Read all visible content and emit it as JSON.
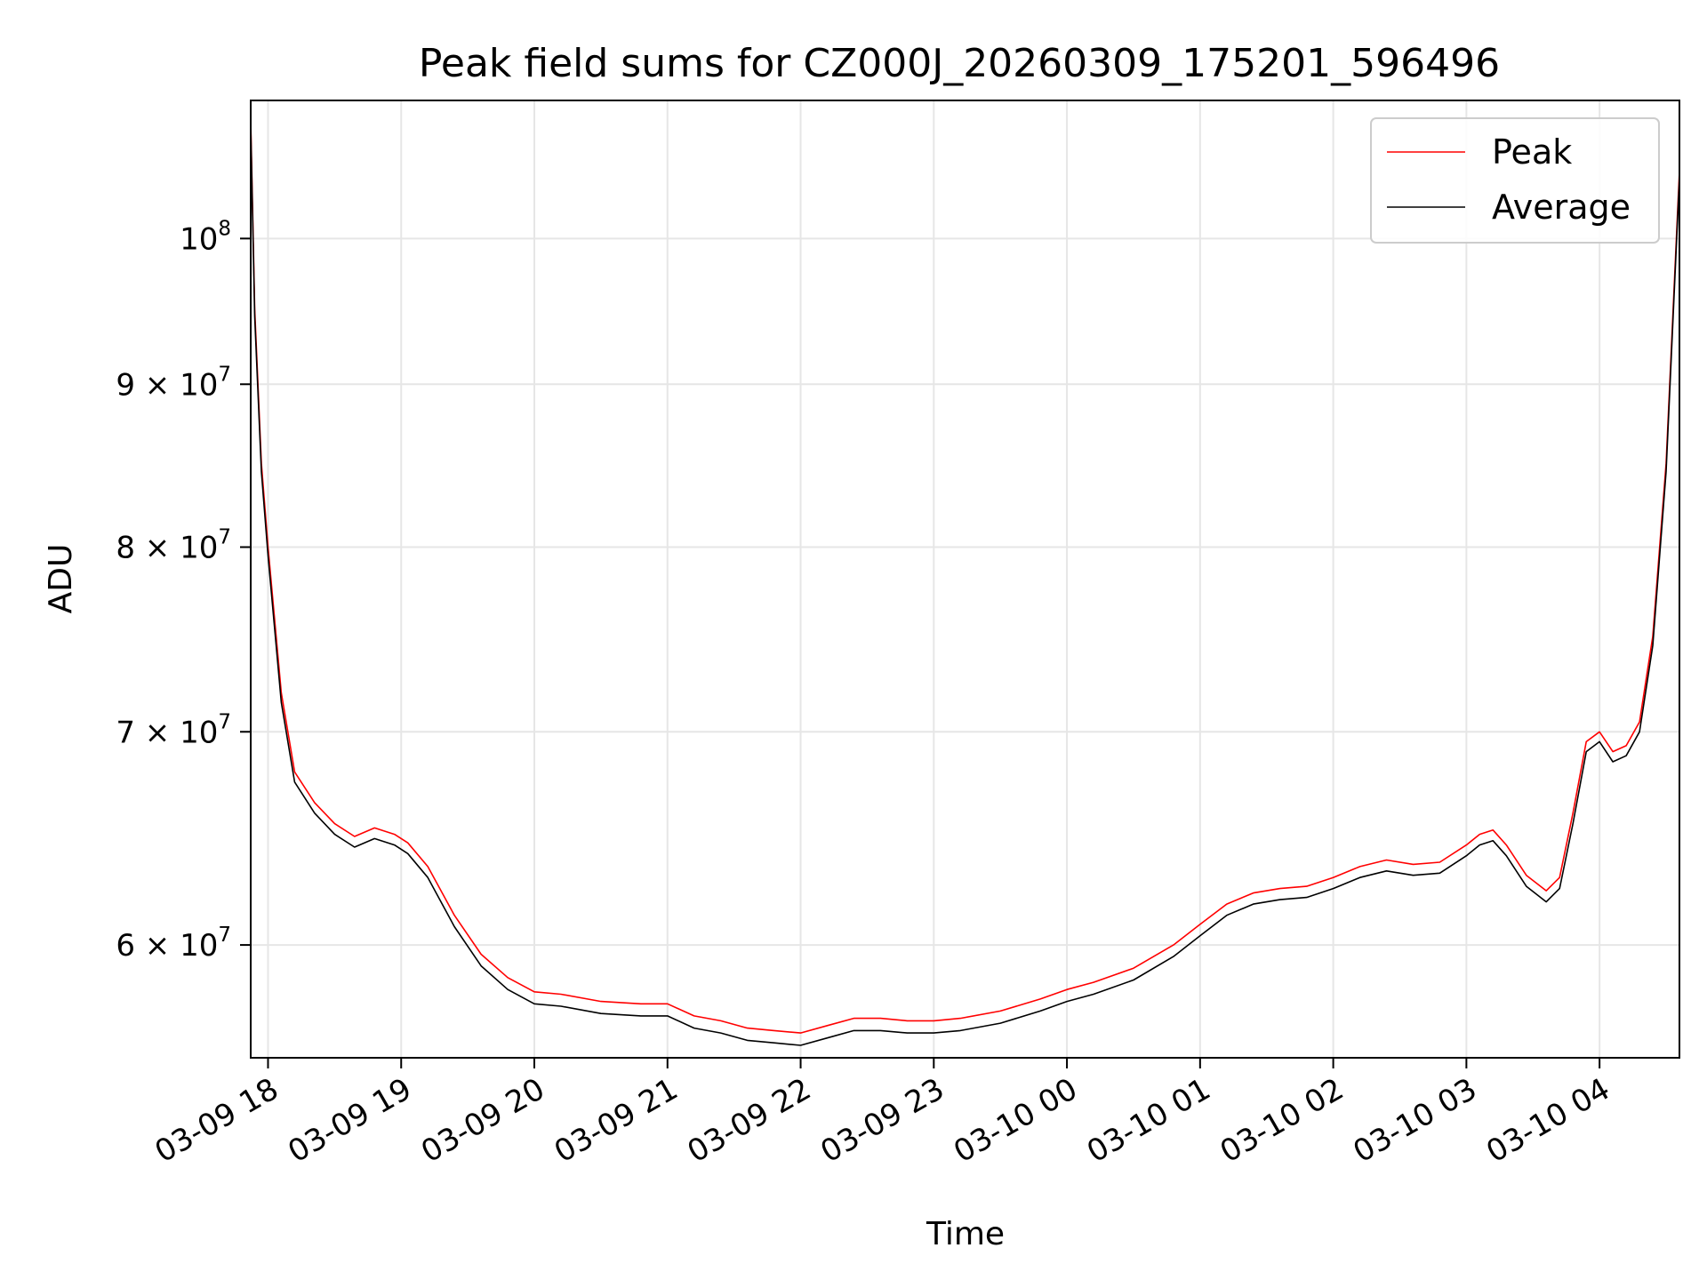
{
  "chart_data": {
    "type": "line",
    "title": "Peak field sums for CZ000J_20260309_175201_596496",
    "xlabel": "Time",
    "ylabel": "ADU",
    "yscale": "log",
    "xlim": [
      17.87,
      28.6
    ],
    "ylim": [
      55300000,
      110500000
    ],
    "grid": true,
    "legend_position": "top-right",
    "x_ticks": [
      {
        "value": 18,
        "label": "03-09 18"
      },
      {
        "value": 19,
        "label": "03-09 19"
      },
      {
        "value": 20,
        "label": "03-09 20"
      },
      {
        "value": 21,
        "label": "03-09 21"
      },
      {
        "value": 22,
        "label": "03-09 22"
      },
      {
        "value": 23,
        "label": "03-09 23"
      },
      {
        "value": 24,
        "label": "03-10 00"
      },
      {
        "value": 25,
        "label": "03-10 01"
      },
      {
        "value": 26,
        "label": "03-10 02"
      },
      {
        "value": 27,
        "label": "03-10 03"
      },
      {
        "value": 28,
        "label": "03-10 04"
      }
    ],
    "y_ticks": [
      {
        "value": 60000000,
        "base": "6 × 10",
        "exp": "7"
      },
      {
        "value": 70000000,
        "base": "7 × 10",
        "exp": "7"
      },
      {
        "value": 80000000,
        "base": "8 × 10",
        "exp": "7"
      },
      {
        "value": 90000000,
        "base": "9 × 10",
        "exp": "7"
      },
      {
        "value": 100000000,
        "base": "10",
        "exp": "8"
      }
    ],
    "series": [
      {
        "name": "Peak",
        "color": "#ff0000",
        "x": [
          17.87,
          17.9,
          17.95,
          18.0,
          18.1,
          18.2,
          18.35,
          18.5,
          18.65,
          18.8,
          18.95,
          19.05,
          19.2,
          19.4,
          19.6,
          19.8,
          20.0,
          20.2,
          20.5,
          20.8,
          21.0,
          21.2,
          21.4,
          21.6,
          21.8,
          22.0,
          22.2,
          22.4,
          22.6,
          22.8,
          23.0,
          23.2,
          23.5,
          23.8,
          24.0,
          24.2,
          24.5,
          24.8,
          25.0,
          25.2,
          25.4,
          25.6,
          25.8,
          26.0,
          26.2,
          26.4,
          26.6,
          26.8,
          27.0,
          27.1,
          27.2,
          27.3,
          27.45,
          27.6,
          27.7,
          27.8,
          27.9,
          28.0,
          28.1,
          28.2,
          28.3,
          28.4,
          28.5,
          28.6
        ],
        "y": [
          109000000,
          95000000,
          85000000,
          80000000,
          72000000,
          68000000,
          66500000,
          65500000,
          64900000,
          65300000,
          65000000,
          64600000,
          63500000,
          61300000,
          59600000,
          58600000,
          58000000,
          57900000,
          57600000,
          57500000,
          57500000,
          57000000,
          56800000,
          56500000,
          56400000,
          56300000,
          56600000,
          56900000,
          56900000,
          56800000,
          56800000,
          56900000,
          57200000,
          57700000,
          58100000,
          58400000,
          59000000,
          60000000,
          60900000,
          61800000,
          62300000,
          62500000,
          62600000,
          63000000,
          63500000,
          63800000,
          63600000,
          63700000,
          64500000,
          65000000,
          65200000,
          64500000,
          63100000,
          62400000,
          63000000,
          66000000,
          69500000,
          70000000,
          69000000,
          69300000,
          70500000,
          75000000,
          85000000,
          105000000
        ]
      },
      {
        "name": "Average",
        "color": "#000000",
        "x": [
          17.87,
          17.9,
          17.95,
          18.0,
          18.1,
          18.2,
          18.35,
          18.5,
          18.65,
          18.8,
          18.95,
          19.05,
          19.2,
          19.4,
          19.6,
          19.8,
          20.0,
          20.2,
          20.5,
          20.8,
          21.0,
          21.2,
          21.4,
          21.6,
          21.8,
          22.0,
          22.2,
          22.4,
          22.6,
          22.8,
          23.0,
          23.2,
          23.5,
          23.8,
          24.0,
          24.2,
          24.5,
          24.8,
          25.0,
          25.2,
          25.4,
          25.6,
          25.8,
          26.0,
          26.2,
          26.4,
          26.6,
          26.8,
          27.0,
          27.1,
          27.2,
          27.3,
          27.45,
          27.6,
          27.7,
          27.8,
          27.9,
          28.0,
          28.1,
          28.2,
          28.3,
          28.4,
          28.5,
          28.6
        ],
        "y": [
          108500000,
          94500000,
          84500000,
          79500000,
          71500000,
          67500000,
          66000000,
          65000000,
          64400000,
          64800000,
          64500000,
          64100000,
          63000000,
          60800000,
          59100000,
          58100000,
          57500000,
          57400000,
          57100000,
          57000000,
          57000000,
          56500000,
          56300000,
          56000000,
          55900000,
          55800000,
          56100000,
          56400000,
          56400000,
          56300000,
          56300000,
          56400000,
          56700000,
          57200000,
          57600000,
          57900000,
          58500000,
          59500000,
          60400000,
          61300000,
          61800000,
          62000000,
          62100000,
          62500000,
          63000000,
          63300000,
          63100000,
          63200000,
          64000000,
          64500000,
          64700000,
          64000000,
          62600000,
          61900000,
          62500000,
          65500000,
          69000000,
          69500000,
          68500000,
          68800000,
          70000000,
          74500000,
          84500000,
          104500000
        ]
      }
    ]
  }
}
